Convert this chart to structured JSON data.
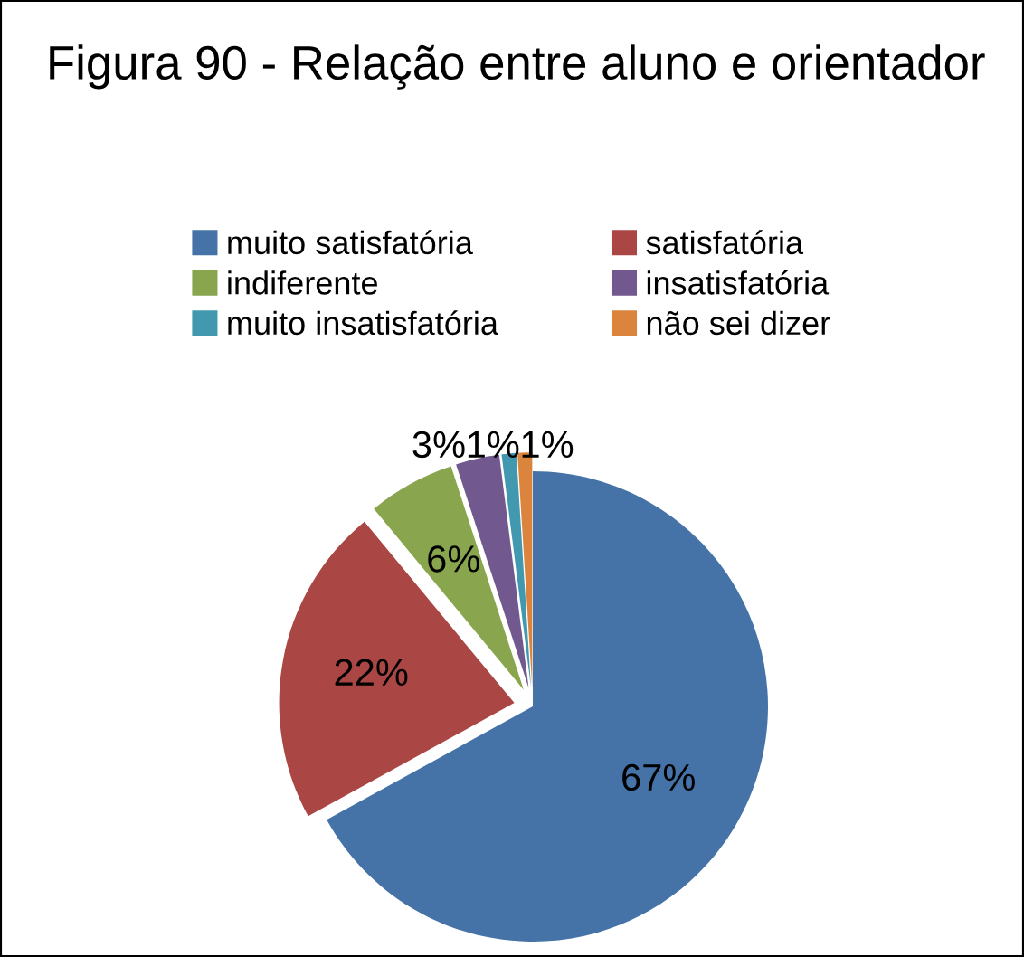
{
  "chart_data": {
    "type": "pie",
    "title": "Figura 90 - Relação entre aluno e orientador",
    "categories": [
      "muito satisfatória",
      "satisfatória",
      "indiferente",
      "insatisfatória",
      "muito insatisfatória",
      "não sei dizer"
    ],
    "values": [
      67,
      22,
      6,
      3,
      1,
      1
    ],
    "colors": [
      "#4572a7",
      "#aa4643",
      "#89a54e",
      "#71588f",
      "#4198af",
      "#db843d"
    ],
    "value_labels": [
      "67%",
      "22%",
      "6%",
      "3%",
      "1%",
      "1%"
    ],
    "legend": "top"
  }
}
